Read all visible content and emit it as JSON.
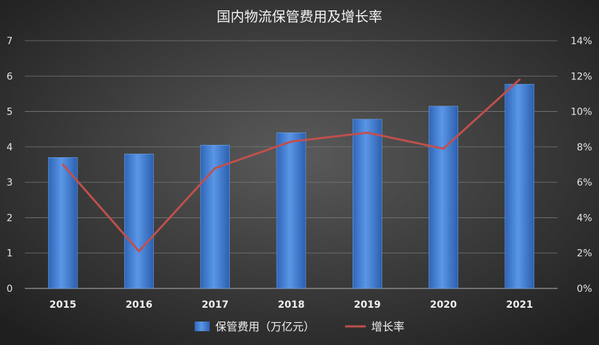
{
  "chart_data": {
    "type": "bar+line",
    "title": "国内物流保管费用及增长率",
    "categories": [
      "2015",
      "2016",
      "2017",
      "2018",
      "2019",
      "2020",
      "2021"
    ],
    "series": [
      {
        "name": "保管费用（万亿元）",
        "type": "bar",
        "axis": "left",
        "values": [
          3.7,
          3.8,
          4.05,
          4.4,
          4.78,
          5.15,
          5.77
        ]
      },
      {
        "name": "增长率",
        "type": "line",
        "axis": "right",
        "values": [
          7.0,
          2.1,
          6.8,
          8.3,
          8.8,
          7.9,
          11.8
        ]
      }
    ],
    "y_left": {
      "min": 0,
      "max": 7,
      "ticks": [
        "0",
        "1",
        "2",
        "3",
        "4",
        "5",
        "6",
        "7"
      ]
    },
    "y_right": {
      "min": 0,
      "max": 14,
      "ticks": [
        "0%",
        "2%",
        "4%",
        "6%",
        "8%",
        "10%",
        "12%",
        "14%"
      ]
    },
    "grid": true,
    "legend_position": "bottom",
    "colors": {
      "bar": "#4a86d8",
      "line": "#c0504d",
      "grid": "#7a7a7a",
      "background": "#2b2b2b"
    }
  }
}
